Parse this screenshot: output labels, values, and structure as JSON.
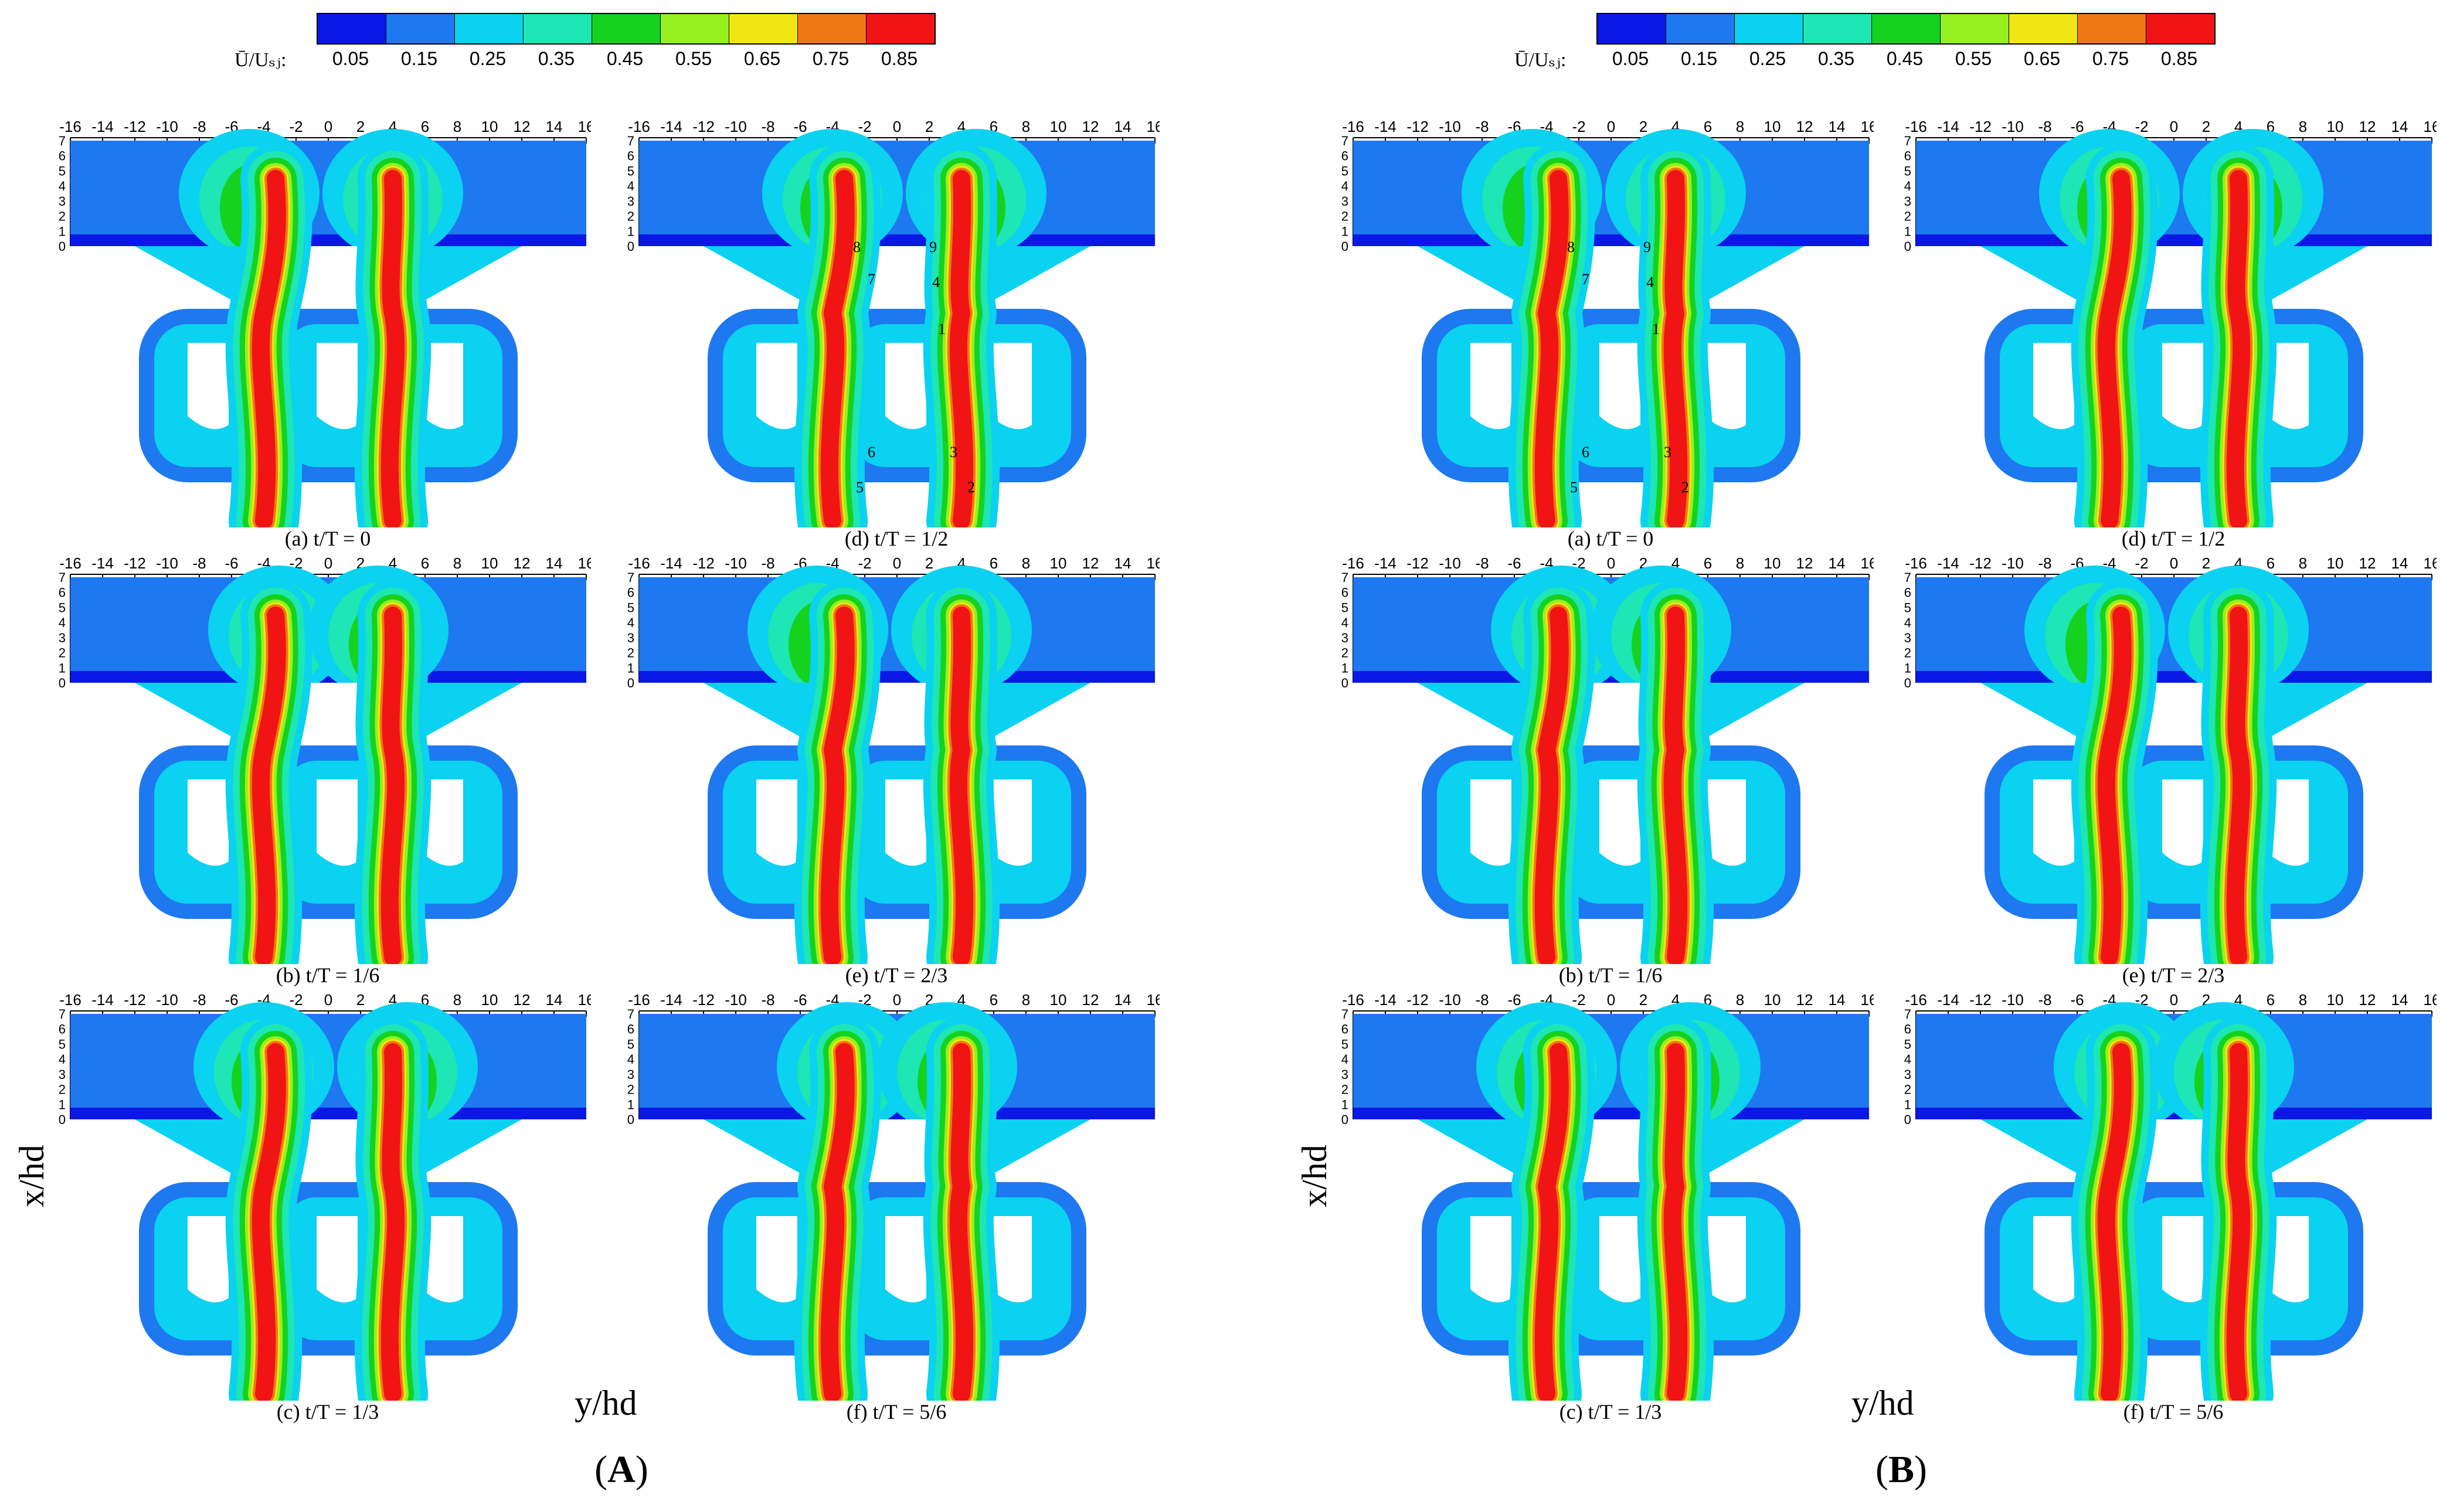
{
  "colorbar": {
    "label": "Ū/Uₛⱼ:",
    "ticks": [
      "0.05",
      "0.15",
      "0.25",
      "0.35",
      "0.45",
      "0.55",
      "0.65",
      "0.75",
      "0.85"
    ],
    "colors": [
      "#0a18e6",
      "#1e78f0",
      "#0ad2f0",
      "#1ee6b4",
      "#14d21e",
      "#96f01e",
      "#f0e614",
      "#f07814",
      "#f01414"
    ]
  },
  "y_tick_labels": [
    "-16",
    "-14",
    "-12",
    "-10",
    "-8",
    "-6",
    "-4",
    "-2",
    "0",
    "2",
    "4",
    "6",
    "8",
    "10",
    "12",
    "14",
    "16"
  ],
  "x_tick_labels": [
    "7",
    "6",
    "5",
    "4",
    "3",
    "2",
    "1",
    "0"
  ],
  "axis_titles": {
    "x": "x/hd",
    "y": "y/hd"
  },
  "groups": [
    {
      "label": "A",
      "panels": [
        {
          "caption": "(a) t/T = 0"
        },
        {
          "caption": "(d) t/T = 1/2"
        },
        {
          "caption": "(b) t/T = 1/6"
        },
        {
          "caption": "(e) t/T = 2/3"
        },
        {
          "caption": "(c) t/T = 1/3"
        },
        {
          "caption": "(f) t/T = 5/6"
        }
      ]
    },
    {
      "label": "B",
      "panels": [
        {
          "caption": "(a) t/T = 0"
        },
        {
          "caption": "(d) t/T = 1/2"
        },
        {
          "caption": "(b) t/T = 1/6"
        },
        {
          "caption": "(e) t/T = 2/3"
        },
        {
          "caption": "(c) t/T = 1/3"
        },
        {
          "caption": "(f) t/T = 5/6"
        }
      ]
    }
  ],
  "point_labels": [
    "1",
    "2",
    "3",
    "4",
    "5",
    "6",
    "7",
    "8",
    "9"
  ]
}
